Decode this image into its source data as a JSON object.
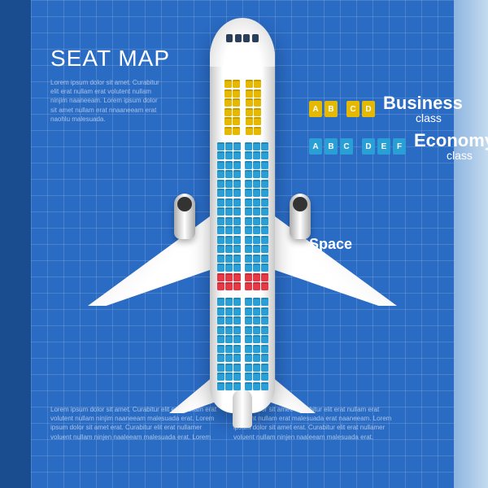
{
  "background": {
    "left_stripe_color": "#1a4d8f",
    "grid_bg_color": "#2a6bc4",
    "grid_line_color": "rgba(255,255,255,0.15)",
    "right_stripe_gradient": [
      "#8db4e0",
      "#c5dbef"
    ]
  },
  "title": "SEAT MAP",
  "lorem_top": "Lorem ipsum dolor sit amet. Curabitur elit erat nullam erat volutent nullam ninjim naaneeam. Lorem ipsum dolor sit amet nullam erat nnaaneeam erat naohlu malesuada.",
  "lorem_bottom": "Lorem ipsum dolor sit amet. Curabitur elit erat nullam erat volutent nullam ninjim naaneeam malesuada erat. Lorem ipsum dolor sit amet erat. Curabitur elit erat nullamer voluent nullam ninjen naaleeam malesuada erat. Lorem ipsum dolor sit amet. Curabitur elit erat nullam erat volutent nullam erat malesuada erat naaneeam. Lorem ipsum dolor sit amet erat. Curabitur elit erat nullamer voluent nullam ninjen naaleeam malesuada erat.",
  "legend": {
    "business": {
      "letters": [
        "A",
        "B",
        "C",
        "D"
      ],
      "seat_color": "#e6b800",
      "label_main": "Business",
      "label_sub": "class"
    },
    "economy": {
      "letters": [
        "A",
        "B",
        "C",
        "D",
        "E",
        "F"
      ],
      "seat_color": "#2a9fd6",
      "label_main": "Economy",
      "label_sub": "class"
    },
    "space": {
      "label": "Space",
      "color": "#e63946"
    }
  },
  "seatmap": {
    "business": {
      "rows": 6,
      "cols": 4,
      "seat_color": "#e6b800",
      "aisle_after_col": 2
    },
    "economy": {
      "rows": 26,
      "cols": 6,
      "seat_color": "#2a9fd6",
      "aisle_after_col": 3,
      "space_rows": [
        14,
        15
      ],
      "space_color": "#e63946"
    }
  },
  "plane_colors": {
    "fuselage_light": "#ffffff",
    "fuselage_shade": "#c8c8c8",
    "cockpit_window": "#2a3f5a"
  }
}
